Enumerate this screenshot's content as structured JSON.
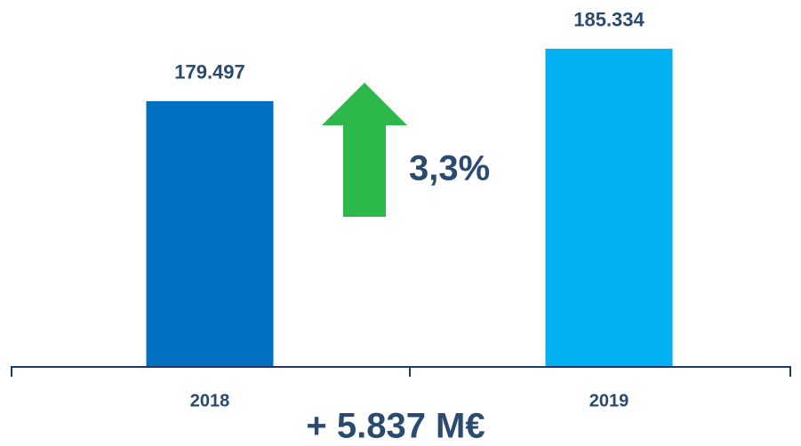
{
  "chart_data": {
    "type": "bar",
    "categories": [
      "2018",
      "2019"
    ],
    "values": [
      179497,
      185334
    ],
    "value_labels": [
      "179.497",
      "185.334"
    ],
    "colors": [
      "#0070c0",
      "#00b0f0"
    ],
    "ylim": [
      150000,
      187000
    ],
    "annotations": [
      "3,3%",
      "+ 5.837 M€"
    ]
  }
}
